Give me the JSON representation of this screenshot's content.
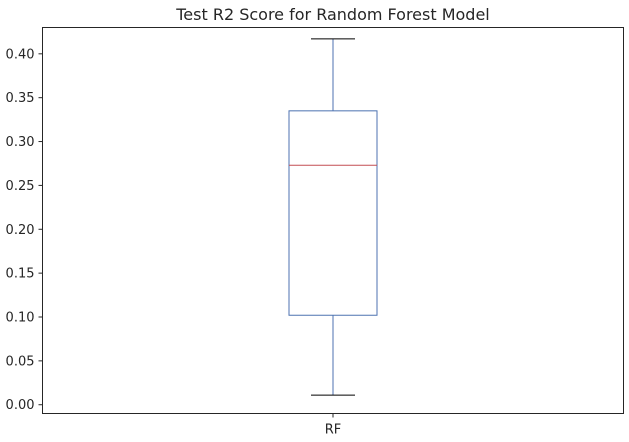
{
  "chart_data": {
    "type": "box",
    "title": "Test R2 Score for Random Forest Model",
    "xlabel": "",
    "ylabel": "",
    "categories": [
      "RF"
    ],
    "ylim": [
      -0.01,
      0.43
    ],
    "yticks": [
      0.0,
      0.05,
      0.1,
      0.15,
      0.2,
      0.25,
      0.3,
      0.35,
      0.4
    ],
    "ytick_labels": [
      "0.00",
      "0.05",
      "0.10",
      "0.15",
      "0.20",
      "0.25",
      "0.30",
      "0.35",
      "0.40"
    ],
    "grid": false,
    "boxes": [
      {
        "category": "RF",
        "whisker_low": 0.011,
        "q1": 0.102,
        "median": 0.273,
        "q3": 0.335,
        "whisker_high": 0.417
      }
    ],
    "colors": {
      "box": "#4c72b0",
      "whisker": "#4c72b0",
      "cap": "#000000",
      "median": "#c44e52",
      "frame": "#262626"
    }
  }
}
